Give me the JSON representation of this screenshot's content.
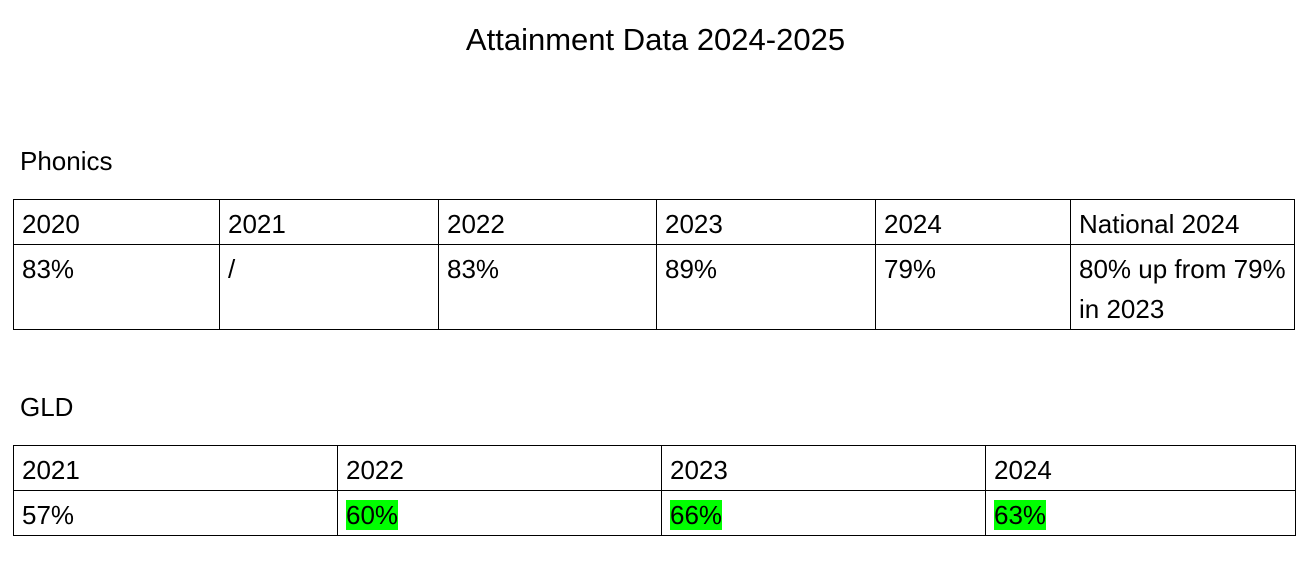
{
  "title": "Attainment Data 2024-2025",
  "sections": [
    {
      "heading": "Phonics",
      "table": {
        "header": [
          "2020",
          "2021",
          "2022",
          "2023",
          "2024",
          "National 2024"
        ],
        "rows": [
          [
            "83%",
            "/",
            "83%",
            "89%",
            "79%",
            "80% up from 79% in 2023"
          ]
        ]
      }
    },
    {
      "heading": "GLD",
      "table": {
        "header": [
          "2021",
          "2022",
          "2023",
          "2024"
        ],
        "rows": [
          [
            "57%",
            "60%",
            "66%",
            "63%"
          ]
        ]
      }
    }
  ]
}
